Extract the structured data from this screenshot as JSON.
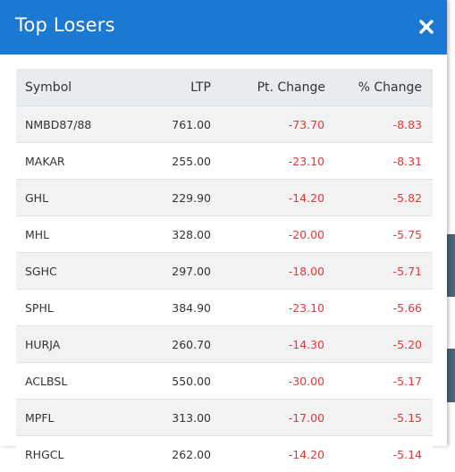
{
  "modal": {
    "title": "Top Losers",
    "close_icon": "close-icon"
  },
  "table": {
    "columns": [
      "Symbol",
      "LTP",
      "Pt. Change",
      "% Change"
    ],
    "rows": [
      {
        "symbol": "NMBD87/88",
        "ltp": "761.00",
        "pt_change": "-73.70",
        "pct_change": "-8.83"
      },
      {
        "symbol": "MAKAR",
        "ltp": "255.00",
        "pt_change": "-23.10",
        "pct_change": "-8.31"
      },
      {
        "symbol": "GHL",
        "ltp": "229.90",
        "pt_change": "-14.20",
        "pct_change": "-5.82"
      },
      {
        "symbol": "MHL",
        "ltp": "328.00",
        "pt_change": "-20.00",
        "pct_change": "-5.75"
      },
      {
        "symbol": "SGHC",
        "ltp": "297.00",
        "pt_change": "-18.00",
        "pct_change": "-5.71"
      },
      {
        "symbol": "SPHL",
        "ltp": "384.90",
        "pt_change": "-23.10",
        "pct_change": "-5.66"
      },
      {
        "symbol": "HURJA",
        "ltp": "260.70",
        "pt_change": "-14.30",
        "pct_change": "-5.20"
      },
      {
        "symbol": "ACLBSL",
        "ltp": "550.00",
        "pt_change": "-30.00",
        "pct_change": "-5.17"
      },
      {
        "symbol": "MPFL",
        "ltp": "313.00",
        "pt_change": "-17.00",
        "pct_change": "-5.15"
      },
      {
        "symbol": "RHGCL",
        "ltp": "262.00",
        "pt_change": "-14.20",
        "pct_change": "-5.14"
      }
    ]
  },
  "colors": {
    "header_bg": "#1b78d3",
    "negative": "#e0383e",
    "table_head_bg": "#e9ecef",
    "stripe_bg": "#f2f2f2"
  }
}
